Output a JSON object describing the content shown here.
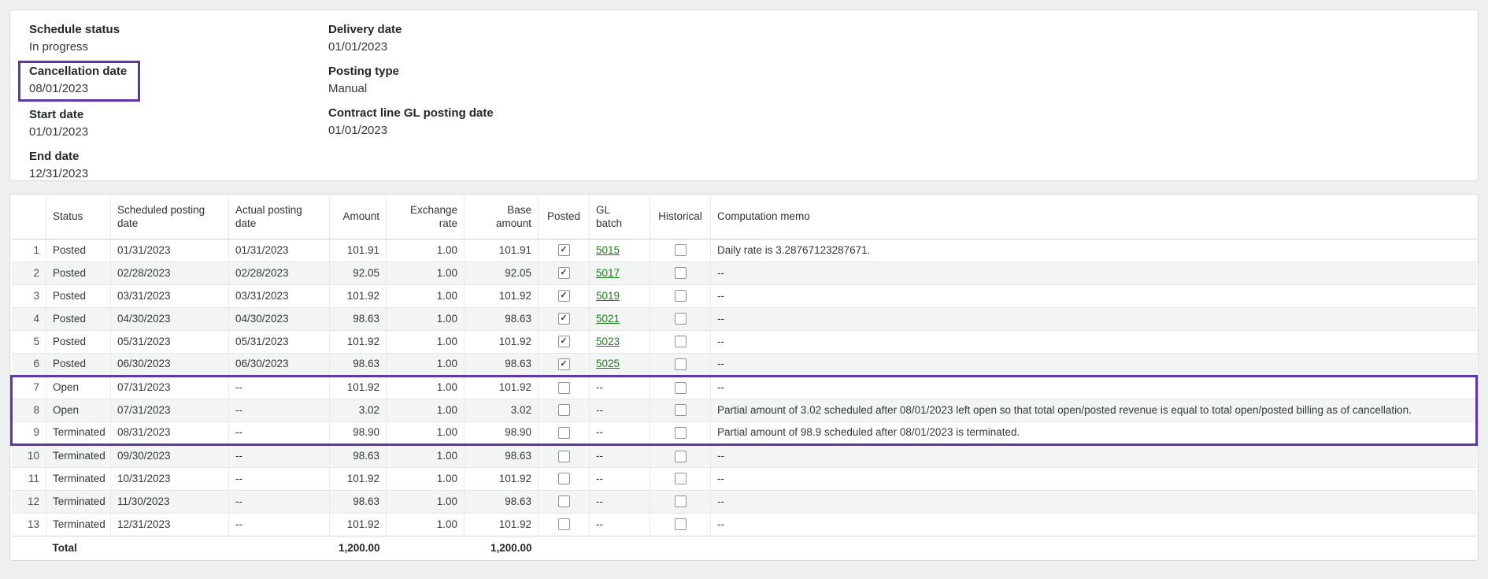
{
  "colors": {
    "highlight_border": "#5c38a8",
    "link_green": "#1e7e1e"
  },
  "header": {
    "fields_left": [
      {
        "label": "Schedule status",
        "value": "In progress"
      },
      {
        "label": "Cancellation date",
        "value": "08/01/2023"
      },
      {
        "label": "Start date",
        "value": "01/01/2023"
      },
      {
        "label": "End date",
        "value": "12/31/2023"
      }
    ],
    "fields_right": [
      {
        "label": "Delivery date",
        "value": "01/01/2023"
      },
      {
        "label": "Posting type",
        "value": "Manual"
      },
      {
        "label": "Contract line GL posting date",
        "value": "01/01/2023"
      }
    ]
  },
  "table": {
    "columns": [
      "",
      "Status",
      "Scheduled posting date",
      "Actual posting date",
      "Amount",
      "Exchange rate",
      "Base amount",
      "Posted",
      "GL batch",
      "Historical",
      "Computation memo"
    ],
    "rows": [
      {
        "num": "1",
        "status": "Posted",
        "scheduled": "01/31/2023",
        "actual": "01/31/2023",
        "amount": "101.91",
        "exchange_rate": "1.00",
        "base_amount": "101.91",
        "posted": true,
        "gl_batch": "5015",
        "historical": false,
        "memo": "Daily rate is 3.28767123287671.",
        "highlighted": false
      },
      {
        "num": "2",
        "status": "Posted",
        "scheduled": "02/28/2023",
        "actual": "02/28/2023",
        "amount": "92.05",
        "exchange_rate": "1.00",
        "base_amount": "92.05",
        "posted": true,
        "gl_batch": "5017",
        "historical": false,
        "memo": "--",
        "highlighted": false
      },
      {
        "num": "3",
        "status": "Posted",
        "scheduled": "03/31/2023",
        "actual": "03/31/2023",
        "amount": "101.92",
        "exchange_rate": "1.00",
        "base_amount": "101.92",
        "posted": true,
        "gl_batch": "5019",
        "historical": false,
        "memo": "--",
        "highlighted": false
      },
      {
        "num": "4",
        "status": "Posted",
        "scheduled": "04/30/2023",
        "actual": "04/30/2023",
        "amount": "98.63",
        "exchange_rate": "1.00",
        "base_amount": "98.63",
        "posted": true,
        "gl_batch": "5021",
        "historical": false,
        "memo": "--",
        "highlighted": false
      },
      {
        "num": "5",
        "status": "Posted",
        "scheduled": "05/31/2023",
        "actual": "05/31/2023",
        "amount": "101.92",
        "exchange_rate": "1.00",
        "base_amount": "101.92",
        "posted": true,
        "gl_batch": "5023",
        "historical": false,
        "memo": "--",
        "highlighted": false
      },
      {
        "num": "6",
        "status": "Posted",
        "scheduled": "06/30/2023",
        "actual": "06/30/2023",
        "amount": "98.63",
        "exchange_rate": "1.00",
        "base_amount": "98.63",
        "posted": true,
        "gl_batch": "5025",
        "historical": false,
        "memo": "--",
        "highlighted": false
      },
      {
        "num": "7",
        "status": "Open",
        "scheduled": "07/31/2023",
        "actual": "--",
        "amount": "101.92",
        "exchange_rate": "1.00",
        "base_amount": "101.92",
        "posted": false,
        "gl_batch": "--",
        "historical": false,
        "memo": "--",
        "highlighted": true
      },
      {
        "num": "8",
        "status": "Open",
        "scheduled": "07/31/2023",
        "actual": "--",
        "amount": "3.02",
        "exchange_rate": "1.00",
        "base_amount": "3.02",
        "posted": false,
        "gl_batch": "--",
        "historical": false,
        "memo": "Partial amount of 3.02 scheduled after 08/01/2023 left open so that total open/posted revenue is equal to total open/posted billing as of cancellation.",
        "highlighted": true
      },
      {
        "num": "9",
        "status": "Terminated",
        "scheduled": "08/31/2023",
        "actual": "--",
        "amount": "98.90",
        "exchange_rate": "1.00",
        "base_amount": "98.90",
        "posted": false,
        "gl_batch": "--",
        "historical": false,
        "memo": "Partial amount of 98.9 scheduled after 08/01/2023 is terminated.",
        "highlighted": true
      },
      {
        "num": "10",
        "status": "Terminated",
        "scheduled": "09/30/2023",
        "actual": "--",
        "amount": "98.63",
        "exchange_rate": "1.00",
        "base_amount": "98.63",
        "posted": false,
        "gl_batch": "--",
        "historical": false,
        "memo": "--",
        "highlighted": false
      },
      {
        "num": "11",
        "status": "Terminated",
        "scheduled": "10/31/2023",
        "actual": "--",
        "amount": "101.92",
        "exchange_rate": "1.00",
        "base_amount": "101.92",
        "posted": false,
        "gl_batch": "--",
        "historical": false,
        "memo": "--",
        "highlighted": false
      },
      {
        "num": "12",
        "status": "Terminated",
        "scheduled": "11/30/2023",
        "actual": "--",
        "amount": "98.63",
        "exchange_rate": "1.00",
        "base_amount": "98.63",
        "posted": false,
        "gl_batch": "--",
        "historical": false,
        "memo": "--",
        "highlighted": false
      },
      {
        "num": "13",
        "status": "Terminated",
        "scheduled": "12/31/2023",
        "actual": "--",
        "amount": "101.92",
        "exchange_rate": "1.00",
        "base_amount": "101.92",
        "posted": false,
        "gl_batch": "--",
        "historical": false,
        "memo": "--",
        "highlighted": false
      }
    ],
    "total": {
      "label": "Total",
      "amount": "1,200.00",
      "base_amount": "1,200.00"
    }
  }
}
